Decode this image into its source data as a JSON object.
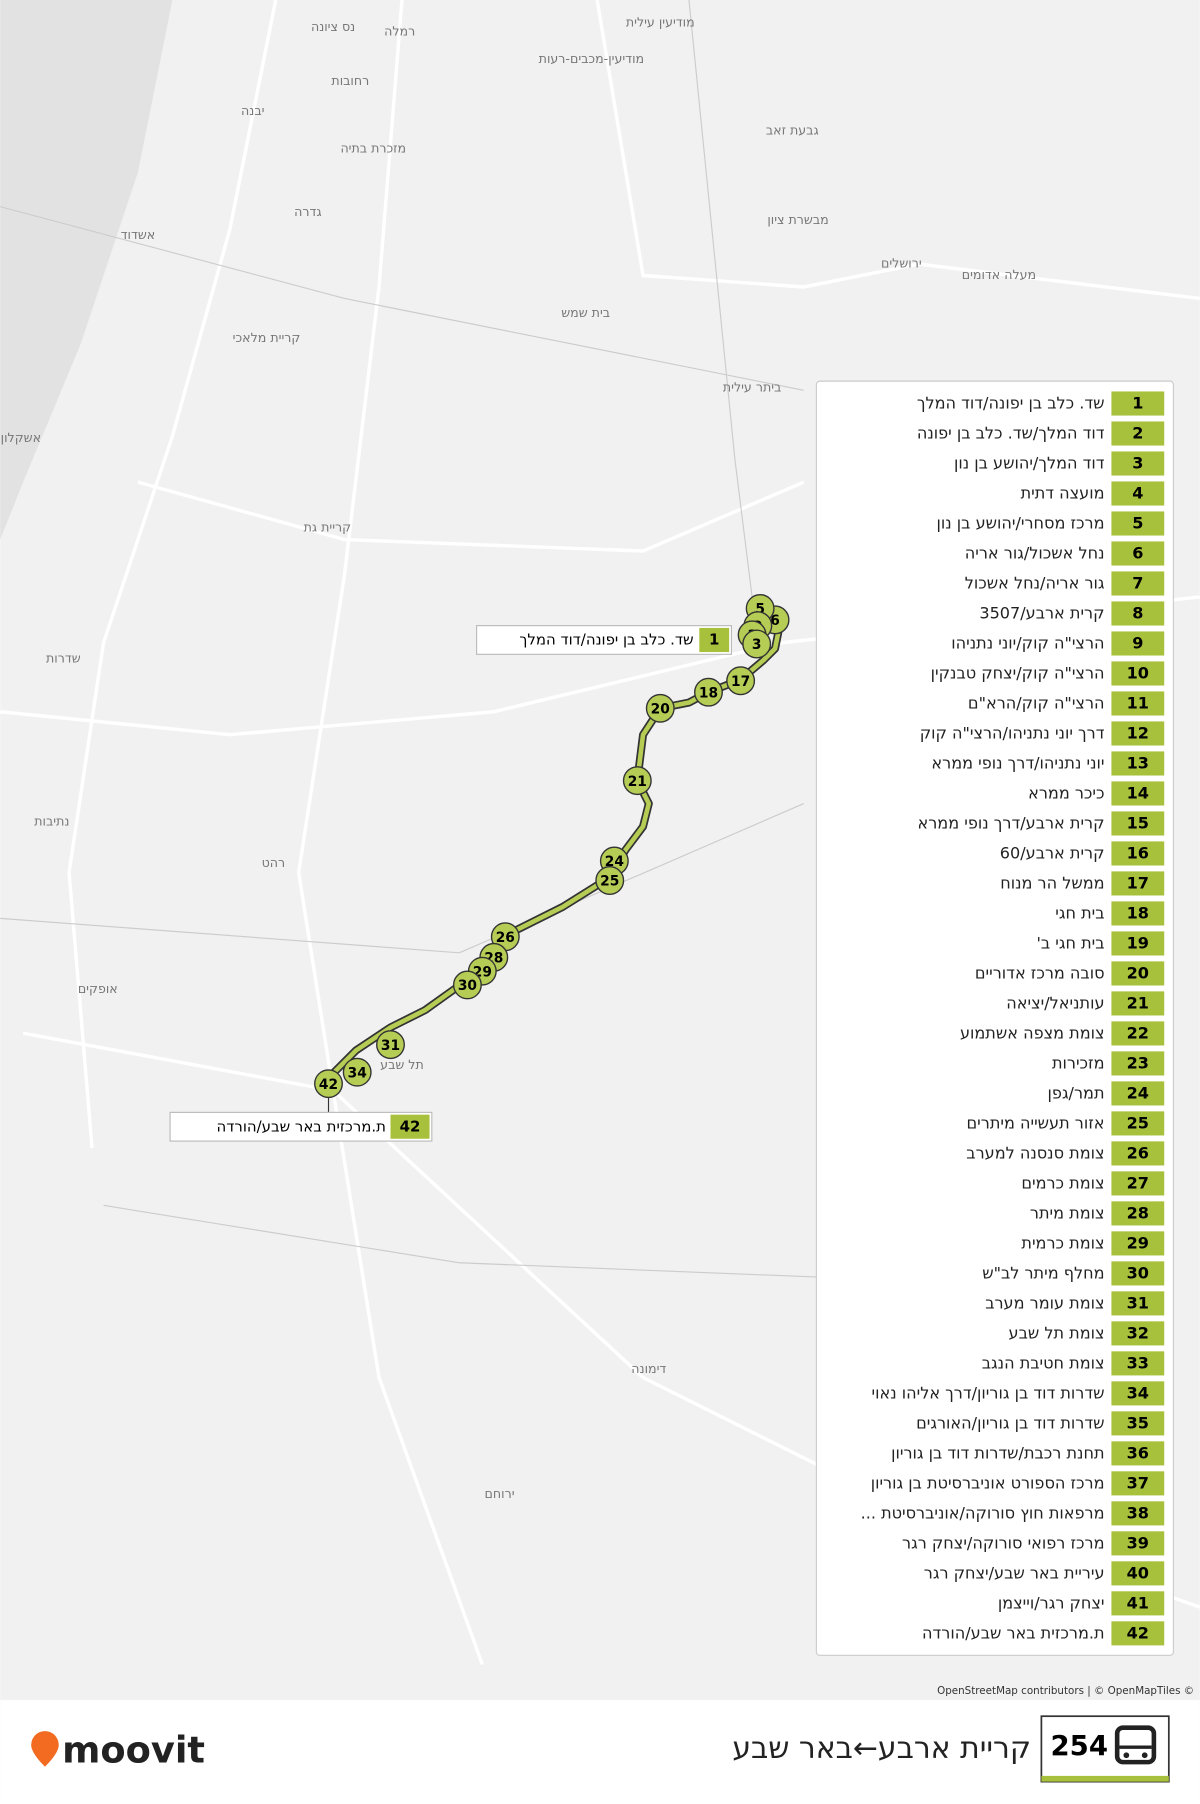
{
  "header": {
    "route_number": "254",
    "title": "קריית ארבע←באר שבע"
  },
  "brand": "moovit",
  "attribution": "OpenStreetMap contributors | © OpenMapTiles ©",
  "stops": [
    {
      "number": 1,
      "name": "שד. כלב בן יפונה/דוד המלך"
    },
    {
      "number": 2,
      "name": "דוד המלך/שד. כלב בן יפונה"
    },
    {
      "number": 3,
      "name": "דוד המלך/יהושע בן נון"
    },
    {
      "number": 4,
      "name": "מועצה דתית"
    },
    {
      "number": 5,
      "name": "מרכז מסחרי/יהושע בן נון"
    },
    {
      "number": 6,
      "name": "נחל אשכול/גור אריה"
    },
    {
      "number": 7,
      "name": "גור אריה/נחל אשכול"
    },
    {
      "number": 8,
      "name": "קרית ארבע/3507"
    },
    {
      "number": 9,
      "name": "הרצי\"ה קוק/יוני נתניהו"
    },
    {
      "number": 10,
      "name": "הרצי\"ה קוק/יצחק טבנקין"
    },
    {
      "number": 11,
      "name": "הרצי\"ה קוק/הרא\"ם"
    },
    {
      "number": 12,
      "name": "דרך יוני נתניהו/הרצי\"ה קוק"
    },
    {
      "number": 13,
      "name": "יוני נתניהו/דרך נופי ממרא"
    },
    {
      "number": 14,
      "name": "כיכר ממרא"
    },
    {
      "number": 15,
      "name": "קרית ארבע/דרך נופי ממרא"
    },
    {
      "number": 16,
      "name": "קרית ארבע/60"
    },
    {
      "number": 17,
      "name": "ממשל הר מנוח"
    },
    {
      "number": 18,
      "name": "בית חגי"
    },
    {
      "number": 19,
      "name": "בית חגי ב'"
    },
    {
      "number": 20,
      "name": "סובה מרכז אדוריים"
    },
    {
      "number": 21,
      "name": "עותניאל/יציאה"
    },
    {
      "number": 22,
      "name": "צומת מצפה אשתמוע"
    },
    {
      "number": 23,
      "name": "מזכירות"
    },
    {
      "number": 24,
      "name": "תמר/גפן"
    },
    {
      "number": 25,
      "name": "אזור תעשייה מיתרים"
    },
    {
      "number": 26,
      "name": "צומת סנסנה למערב"
    },
    {
      "number": 27,
      "name": "צומת כרמים"
    },
    {
      "number": 28,
      "name": "צומת מיתר"
    },
    {
      "number": 29,
      "name": "צומת כרמית"
    },
    {
      "number": 30,
      "name": "מחלף מיתר לב\"ש"
    },
    {
      "number": 31,
      "name": "צומת עומר מערב"
    },
    {
      "number": 32,
      "name": "צומת תל שבע"
    },
    {
      "number": 33,
      "name": "צומת חטיבת הנגב"
    },
    {
      "number": 34,
      "name": "שדרות דוד בן גוריון/דרך אליהו נאוי"
    },
    {
      "number": 35,
      "name": "שדרות דוד בן גוריון/האורגים"
    },
    {
      "number": 36,
      "name": "תחנת רכבת/שדרות דוד בן גוריון"
    },
    {
      "number": 37,
      "name": "מרכז הספורט אוניברסיטת בן גוריון"
    },
    {
      "number": 38,
      "name": "מרפאות חוץ סורוקה/אוניברסיטת ..."
    },
    {
      "number": 39,
      "name": "מרכז רפואי סורוקה/יצחק רגר"
    },
    {
      "number": 40,
      "name": "עיריית באר שבע/יצחק רגר"
    },
    {
      "number": 41,
      "name": "יצחק רגר/וייצמן"
    },
    {
      "number": 42,
      "name": "ת.מרכזית באר שבע/הורדה"
    }
  ],
  "places": [
    "רמלה",
    "נס ציונה",
    "רחובות",
    "יבנה",
    "מזכרת בתיה",
    "גדרה",
    "אשדוד",
    "קריית מלאכי",
    "אשקלון",
    "קריית גת",
    "שדרות",
    "נתיבות",
    "רהט",
    "אופקים",
    "תל שבע",
    "דימונה",
    "ירוחם",
    "ירושלים",
    "מעלה אדומים",
    "בית שמש",
    "ביתר עילית",
    "מודיעין עילית",
    "מודיעין-מכבים-רעות",
    "גבעת זאב",
    "מבשרת ציון"
  ]
}
